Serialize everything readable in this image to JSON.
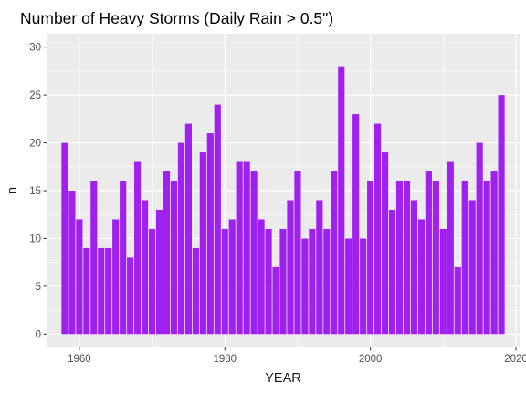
{
  "chart_data": {
    "type": "bar",
    "title": "Number of Heavy Storms (Daily Rain > 0.5\")",
    "xlabel": "YEAR",
    "ylabel": "n",
    "x": [
      1958,
      1959,
      1960,
      1961,
      1962,
      1963,
      1964,
      1965,
      1966,
      1967,
      1968,
      1969,
      1970,
      1971,
      1972,
      1973,
      1974,
      1975,
      1976,
      1977,
      1978,
      1979,
      1980,
      1981,
      1982,
      1983,
      1984,
      1985,
      1986,
      1987,
      1988,
      1989,
      1990,
      1991,
      1992,
      1993,
      1994,
      1995,
      1996,
      1997,
      1998,
      1999,
      2000,
      2001,
      2002,
      2003,
      2004,
      2005,
      2006,
      2007,
      2008,
      2009,
      2010,
      2011,
      2012,
      2013,
      2014,
      2015,
      2016,
      2017,
      2018
    ],
    "values": [
      20,
      15,
      12,
      9,
      16,
      9,
      9,
      12,
      16,
      8,
      18,
      14,
      11,
      13,
      17,
      16,
      20,
      22,
      9,
      19,
      21,
      24,
      11,
      12,
      18,
      18,
      17,
      12,
      11,
      7,
      11,
      14,
      17,
      10,
      11,
      14,
      11,
      17,
      28,
      10,
      23,
      10,
      16,
      22,
      19,
      13,
      16,
      16,
      14,
      12,
      17,
      16,
      11,
      18,
      7,
      16,
      14,
      20,
      16,
      17,
      25
    ],
    "xlim": [
      1955.5,
      2020.5
    ],
    "ylim": [
      -1.4,
      31.4
    ],
    "x_ticks": [
      "1960",
      "1980",
      "2000",
      "2020"
    ],
    "y_ticks": [
      "0",
      "5",
      "10",
      "15",
      "20",
      "25",
      "30"
    ],
    "bar_color": "#A020F0",
    "panel_background": "#EBEBEB",
    "grid_color": "#FFFFFF",
    "grid": true,
    "legend": "none"
  }
}
